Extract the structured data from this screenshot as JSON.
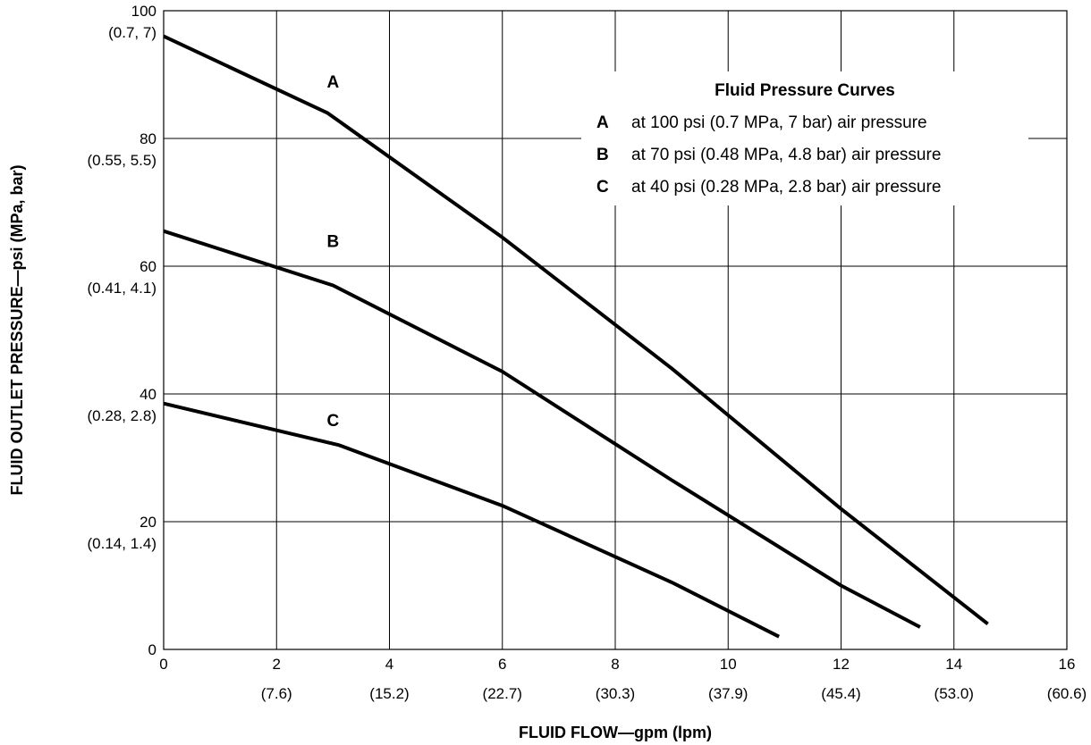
{
  "chart_data": {
    "type": "line",
    "xlabel": "FLUID FLOW—gpm (lpm)",
    "ylabel": "FLUID OUTLET PRESSURE—psi (MPa, bar)",
    "xlim": [
      0,
      16
    ],
    "ylim": [
      0,
      100
    ],
    "grid": true,
    "x_ticks": [
      {
        "value": 0,
        "label": "0",
        "sub": ""
      },
      {
        "value": 2,
        "label": "2",
        "sub": "(7.6)"
      },
      {
        "value": 4,
        "label": "4",
        "sub": "(15.2)"
      },
      {
        "value": 6,
        "label": "6",
        "sub": "(22.7)"
      },
      {
        "value": 8,
        "label": "8",
        "sub": "(30.3)"
      },
      {
        "value": 10,
        "label": "10",
        "sub": "(37.9)"
      },
      {
        "value": 12,
        "label": "12",
        "sub": "(45.4)"
      },
      {
        "value": 14,
        "label": "14",
        "sub": "(53.0)"
      },
      {
        "value": 16,
        "label": "16",
        "sub": "(60.6)"
      }
    ],
    "y_ticks": [
      {
        "value": 0,
        "label": "0",
        "sub": ""
      },
      {
        "value": 20,
        "label": "20",
        "sub": "(0.14, 1.4)"
      },
      {
        "value": 40,
        "label": "40",
        "sub": "(0.28, 2.8)"
      },
      {
        "value": 60,
        "label": "60",
        "sub": "(0.41, 4.1)"
      },
      {
        "value": 80,
        "label": "80",
        "sub": "(0.55, 5.5)"
      },
      {
        "value": 100,
        "label": "100",
        "sub": "(0.7, 7)"
      }
    ],
    "series": [
      {
        "name": "A",
        "x": [
          0,
          2.9,
          6.0,
          9.0,
          12.0,
          14.6
        ],
        "y": [
          96,
          84,
          64.5,
          44,
          22,
          4
        ]
      },
      {
        "name": "B",
        "x": [
          0,
          3.0,
          6.0,
          9.0,
          12.0,
          13.4
        ],
        "y": [
          65.5,
          57,
          43.5,
          26.5,
          10,
          3.5
        ]
      },
      {
        "name": "C",
        "x": [
          0,
          3.1,
          6.0,
          9.0,
          10.9
        ],
        "y": [
          38.5,
          32,
          22.5,
          10.5,
          2
        ]
      }
    ],
    "legend": {
      "title": "Fluid Pressure Curves",
      "position": "top-right",
      "entries": [
        {
          "key": "A",
          "text": "at 100 psi (0.7 MPa, 7 bar) air pressure"
        },
        {
          "key": "B",
          "text": "at 70 psi (0.48 MPa, 4.8 bar) air pressure"
        },
        {
          "key": "C",
          "text": "at 40 psi (0.28 MPa, 2.8 bar) air pressure"
        }
      ]
    },
    "curve_labels": [
      {
        "text": "A",
        "x": 3.0,
        "y": 88
      },
      {
        "text": "B",
        "x": 3.0,
        "y": 63
      },
      {
        "text": "C",
        "x": 3.0,
        "y": 35
      }
    ]
  }
}
